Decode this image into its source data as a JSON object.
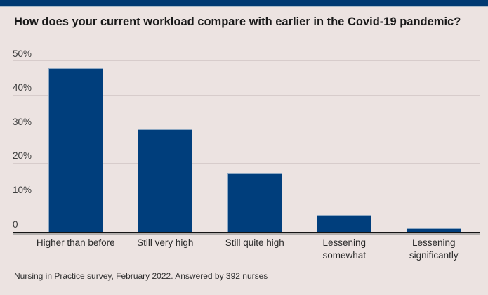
{
  "page": {
    "background": "#ece3e1"
  },
  "header_bar": {
    "color": "#003a72",
    "underline_color": "#a9bcca"
  },
  "title": {
    "text": "How does your current workload compare with earlier in the Covid-19 pandemic?"
  },
  "footer": {
    "text": "Nursing in Practice survey, February 2022. Answered by 392 nurses"
  },
  "chart_data": {
    "type": "bar",
    "title": "How does your current workload compare with earlier in the Covid-19 pandemic?",
    "categories": [
      "Higher than before",
      "Still very high",
      "Still quite high",
      "Lessening somewhat",
      "Lessening significantly"
    ],
    "categories_wrapped": [
      [
        "Higher than before"
      ],
      [
        "Still very high"
      ],
      [
        "Still quite high"
      ],
      [
        "Lessening",
        "somewhat"
      ],
      [
        "Lessening",
        "significantly"
      ]
    ],
    "values": [
      48,
      30,
      17,
      5,
      1
    ],
    "value_unit": "percent",
    "xlabel": "",
    "ylabel": "",
    "ylim": [
      0,
      50
    ],
    "y_ticks": [
      {
        "value": 50,
        "label": "50%"
      },
      {
        "value": 40,
        "label": "40%"
      },
      {
        "value": 30,
        "label": "30%"
      },
      {
        "value": 20,
        "label": "20%"
      },
      {
        "value": 10,
        "label": "10%"
      },
      {
        "value": 0,
        "label": "0"
      }
    ],
    "grid": true,
    "legend": "none",
    "bar_color": "#003e7c",
    "bar_stroke_color": "#8ea8c2",
    "grid_color": "#d7cccb",
    "axis_line_color": "#141414",
    "source_note": "Nursing in Practice survey, February 2022. Answered by 392 nurses"
  }
}
